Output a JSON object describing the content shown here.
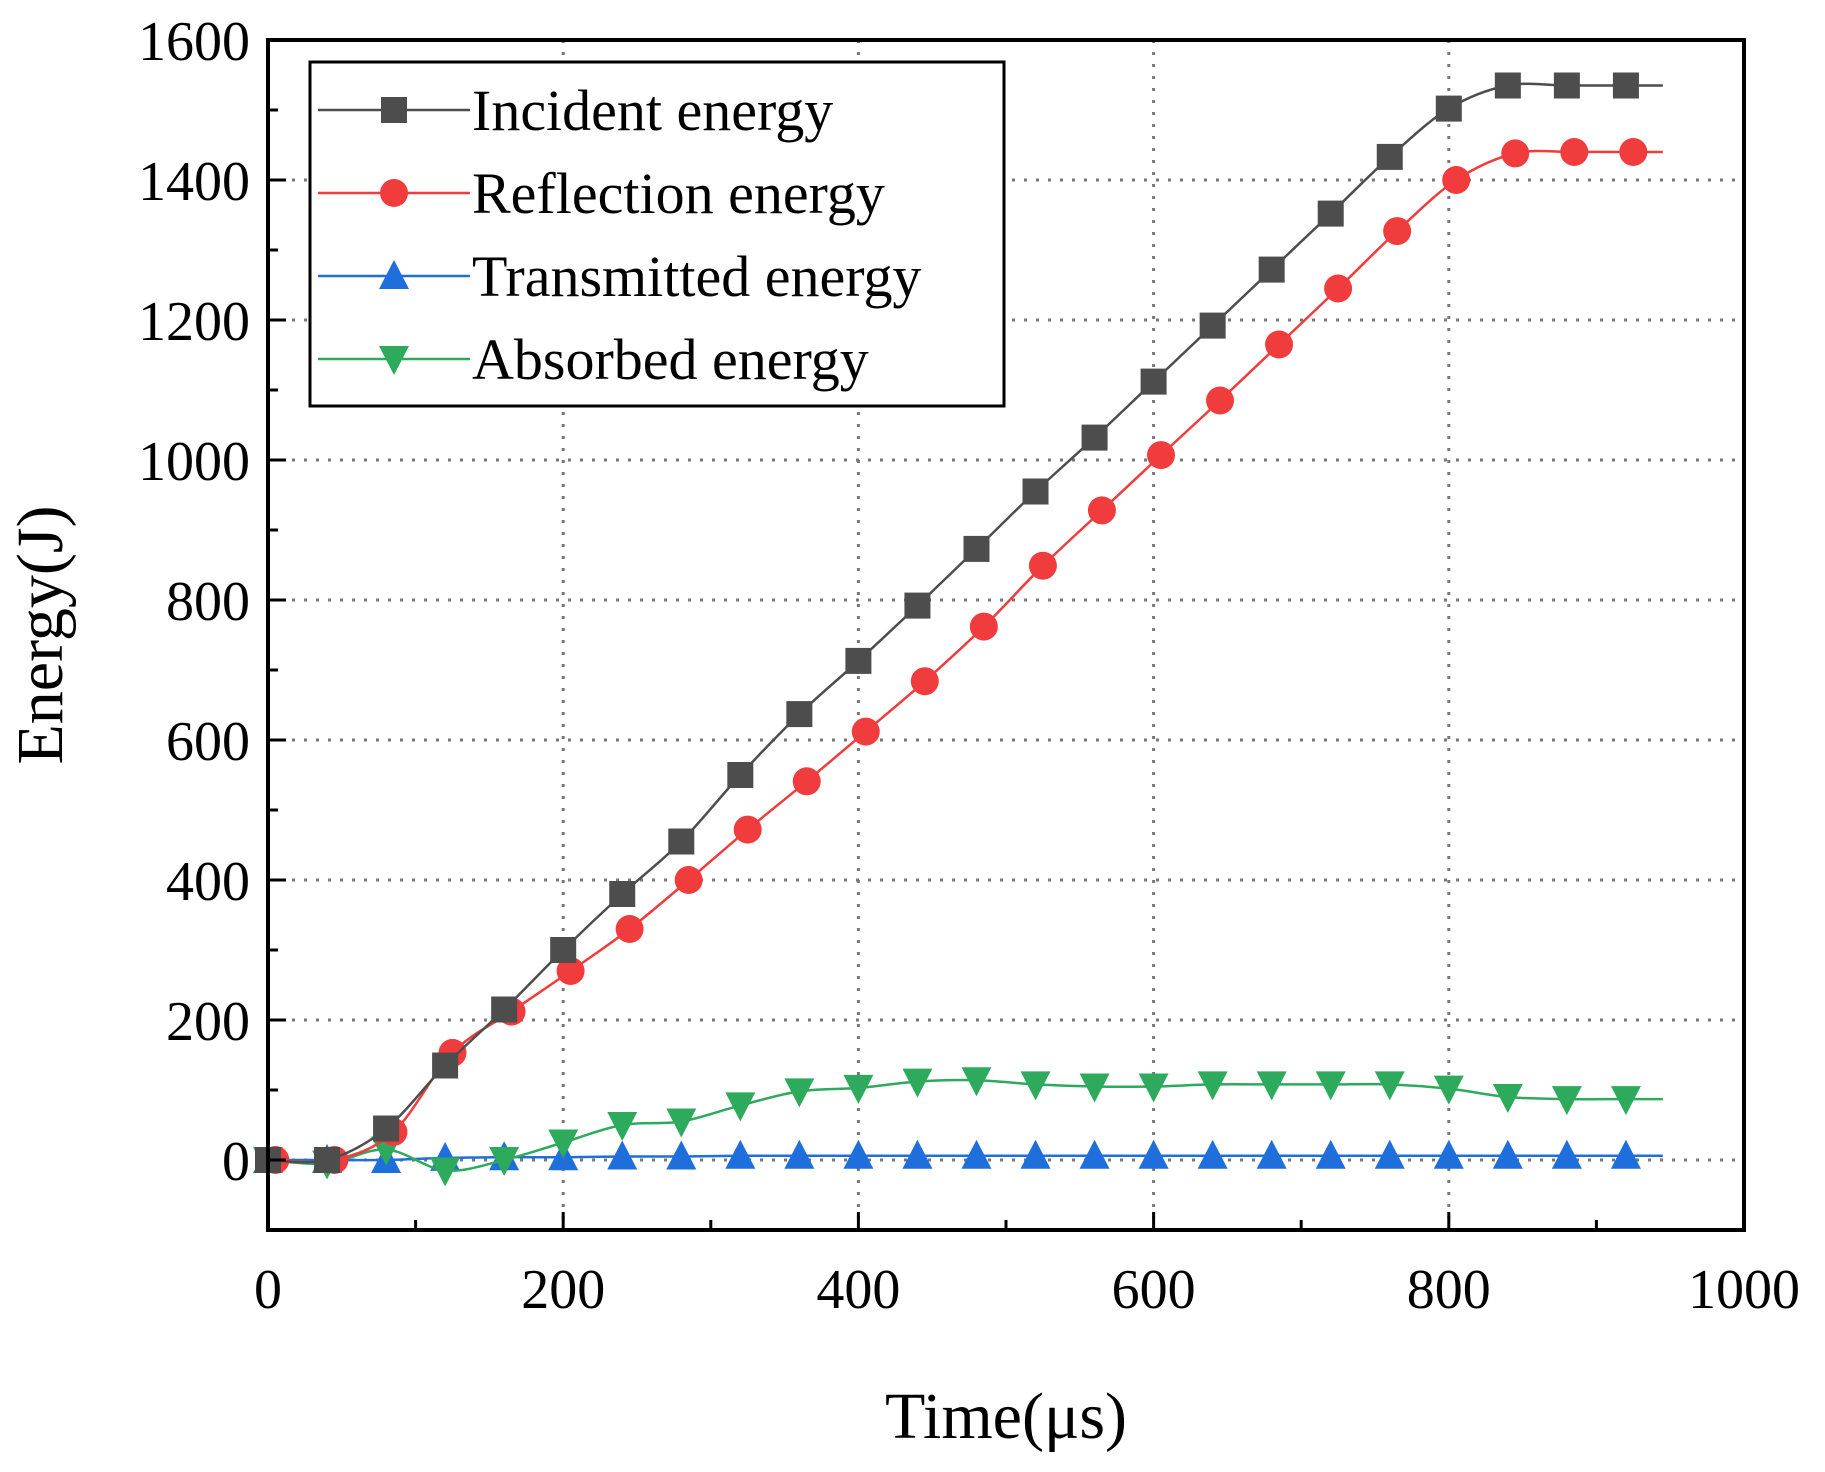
{
  "chart_data": {
    "type": "line",
    "title": "",
    "xlabel": "Time(μs)",
    "ylabel": "Energy(J)",
    "xlim": [
      0,
      1000
    ],
    "ylim": [
      -100,
      1600
    ],
    "xticks": [
      0,
      200,
      400,
      600,
      800,
      1000
    ],
    "yticks": [
      0,
      200,
      400,
      600,
      800,
      1000,
      1200,
      1400,
      1600
    ],
    "grid": true,
    "legend_position": "top-left",
    "series": [
      {
        "name": "Incident energy",
        "color": "#4d4d4d",
        "marker": "square",
        "x": [
          0,
          40,
          80,
          120,
          160,
          200,
          240,
          280,
          320,
          360,
          400,
          440,
          480,
          520,
          560,
          600,
          640,
          680,
          720,
          760,
          800,
          840,
          880,
          920,
          945
        ],
        "y": [
          0,
          0,
          45,
          135,
          215,
          300,
          380,
          455,
          550,
          637,
          713,
          792,
          873,
          955,
          1032,
          1112,
          1192,
          1272,
          1352,
          1433,
          1502,
          1535,
          1535,
          1535,
          1535
        ]
      },
      {
        "name": "Reflection energy",
        "color": "#f03c3c",
        "marker": "circle",
        "x": [
          5,
          45,
          85,
          125,
          165,
          205,
          245,
          285,
          325,
          365,
          405,
          445,
          485,
          525,
          565,
          605,
          645,
          685,
          725,
          765,
          805,
          845,
          885,
          925,
          945
        ],
        "y": [
          0,
          0,
          40,
          153,
          212,
          270,
          330,
          400,
          472,
          541,
          612,
          684,
          762,
          849,
          928,
          1007,
          1085,
          1165,
          1245,
          1327,
          1400,
          1438,
          1440,
          1440,
          1440
        ]
      },
      {
        "name": "Transmitted energy",
        "color": "#1e6fdc",
        "marker": "triangle-up",
        "x": [
          0,
          40,
          80,
          120,
          160,
          200,
          240,
          280,
          320,
          360,
          400,
          440,
          480,
          520,
          560,
          600,
          640,
          680,
          720,
          760,
          800,
          840,
          880,
          920,
          945
        ],
        "y": [
          0,
          0,
          0,
          3,
          4,
          4,
          5,
          5,
          6,
          6,
          6,
          6,
          6,
          6,
          6,
          6,
          6,
          6,
          6,
          6,
          6,
          6,
          6,
          6,
          6
        ]
      },
      {
        "name": "Absorbed energy",
        "color": "#2eaa5c",
        "marker": "triangle-down",
        "x": [
          0,
          40,
          80,
          120,
          160,
          200,
          240,
          280,
          320,
          360,
          400,
          440,
          480,
          520,
          560,
          600,
          640,
          680,
          720,
          760,
          800,
          840,
          880,
          920,
          945
        ],
        "y": [
          0,
          -5,
          15,
          -15,
          0,
          25,
          50,
          55,
          78,
          98,
          103,
          112,
          114,
          108,
          105,
          105,
          108,
          108,
          108,
          108,
          102,
          90,
          87,
          87,
          87
        ]
      }
    ]
  }
}
